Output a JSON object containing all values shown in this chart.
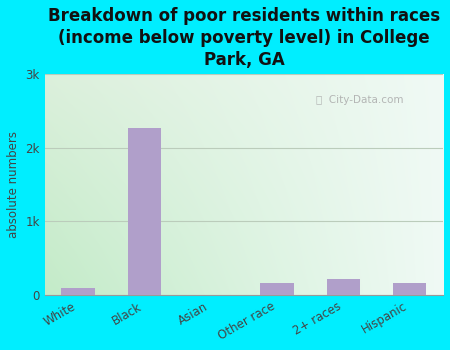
{
  "categories": [
    "White",
    "Black",
    "Asian",
    "Other race",
    "2+ races",
    "Hispanic"
  ],
  "values": [
    100,
    2270,
    10,
    170,
    220,
    170
  ],
  "bar_color": "#b09fca",
  "title": "Breakdown of poor residents within races\n(income below poverty level) in College\nPark, GA",
  "ylabel": "absolute numbers",
  "ylim": [
    0,
    3000
  ],
  "yticks": [
    0,
    1000,
    2000,
    3000
  ],
  "ytick_labels": [
    "0",
    "1k",
    "2k",
    "3k"
  ],
  "background_outer": "#00eeff",
  "grad_topleft": [
    220,
    240,
    220
  ],
  "grad_topright": [
    240,
    250,
    245
  ],
  "grad_bottomleft": [
    195,
    235,
    200
  ],
  "grad_bottomright": [
    240,
    250,
    245
  ],
  "grid_color": "#bbccbb",
  "watermark": "  City-Data.com",
  "title_fontsize": 12,
  "label_fontsize": 8.5,
  "tick_label_color": "#444444",
  "title_color": "#111111"
}
